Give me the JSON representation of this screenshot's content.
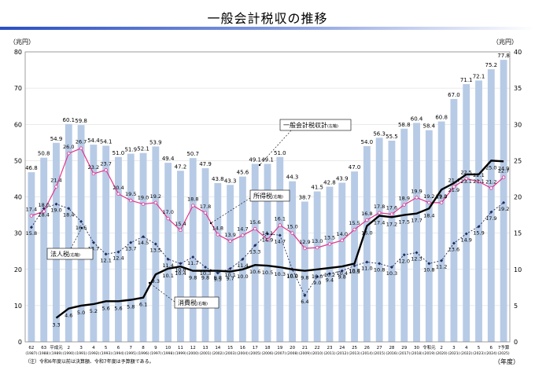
{
  "title": "一般会計税収の推移",
  "left_unit": "（兆円）",
  "right_unit": "（兆円）",
  "x_unit": "（年度）",
  "note": "（注）令和6年度以前は決算額、令和7年度は予算額である。",
  "colors": {
    "bar": "#b7cbe6",
    "total": "#000000",
    "income": "#e4348f",
    "corp": "#1f2a5a",
    "consumption": "#000000"
  },
  "chart_data": {
    "type": "bar",
    "years": [
      "62",
      "63",
      "平成元",
      "2",
      "3",
      "4",
      "5",
      "6",
      "7",
      "8",
      "9",
      "10",
      "11",
      "12",
      "13",
      "14",
      "15",
      "16",
      "17",
      "18",
      "19",
      "20",
      "21",
      "22",
      "23",
      "24",
      "25",
      "26",
      "27",
      "28",
      "29",
      "30",
      "令和元",
      "2",
      "3",
      "4",
      "5",
      "6",
      "7予算"
    ],
    "years_western": [
      "(1987)",
      "(1988)",
      "(1989)",
      "(1990)",
      "(1991)",
      "(1992)",
      "(1993)",
      "(1994)",
      "(1995)",
      "(1996)",
      "(1997)",
      "(1998)",
      "(1999)",
      "(2000)",
      "(2001)",
      "(2002)",
      "(2003)",
      "(2004)",
      "(2005)",
      "(2006)",
      "(2007)",
      "(2008)",
      "(2009)",
      "(2010)",
      "(2011)",
      "(2012)",
      "(2013)",
      "(2014)",
      "(2015)",
      "(2016)",
      "(2017)",
      "(2018)",
      "(2019)",
      "(2020)",
      "(2021)",
      "(2022)",
      "(2023)",
      "(2024)",
      "(2025)"
    ],
    "left_axis": {
      "ticks": [
        0,
        10,
        20,
        30,
        40,
        50,
        60,
        70,
        80
      ],
      "ylim": [
        0,
        80
      ]
    },
    "right_axis": {
      "ticks": [
        0,
        5,
        10,
        15,
        20,
        25,
        30,
        35,
        40
      ],
      "ylim": [
        0,
        40
      ]
    },
    "total": {
      "name": "一般会計税収計(左軸)",
      "label": "一般会計税収計",
      "axis_tag": "(左軸)",
      "axis": "left",
      "values": [
        46.8,
        50.8,
        54.9,
        60.1,
        59.8,
        54.4,
        54.1,
        51.0,
        51.9,
        52.1,
        53.9,
        49.4,
        47.2,
        50.7,
        47.9,
        43.8,
        43.3,
        45.6,
        49.1,
        49.1,
        51.0,
        44.3,
        38.7,
        41.5,
        42.8,
        43.9,
        47.0,
        54.0,
        56.3,
        55.5,
        58.8,
        60.4,
        58.4,
        60.8,
        67.0,
        71.1,
        72.1,
        75.2,
        77.8
      ]
    },
    "series": [
      {
        "name": "所得税(右軸)",
        "label": "所得税",
        "axis_tag": "(右軸)",
        "axis": "right",
        "values": [
          17.4,
          18.0,
          21.4,
          26.0,
          26.7,
          23.2,
          23.7,
          20.4,
          19.5,
          19.0,
          19.2,
          17.0,
          15.4,
          18.8,
          17.8,
          14.8,
          13.9,
          14.7,
          15.6,
          14.1,
          16.1,
          15.0,
          12.9,
          13.0,
          13.5,
          14.0,
          15.5,
          16.8,
          17.8,
          17.6,
          18.9,
          19.9,
          19.2,
          19.2,
          21.4,
          22.5,
          22.1,
          21.2,
          22.7
        ]
      },
      {
        "name": "法人税(右軸)",
        "label": "法人税",
        "axis_tag": "(右軸)",
        "axis": "right",
        "values": [
          15.8,
          18.4,
          19.0,
          18.4,
          16.6,
          13.7,
          12.1,
          12.4,
          13.7,
          14.5,
          13.5,
          11.4,
          10.8,
          11.7,
          10.3,
          9.5,
          10.1,
          11.4,
          13.3,
          14.9,
          14.7,
          10.0,
          6.4,
          9.0,
          9.4,
          9.8,
          10.5,
          11.0,
          10.8,
          10.3,
          12.0,
          12.3,
          10.8,
          11.2,
          13.6,
          14.9,
          15.9,
          17.9,
          19.2
        ]
      },
      {
        "name": "消費税(右軸)",
        "label": "消費税",
        "axis_tag": "(右軸)",
        "axis": "right",
        "values": [
          null,
          null,
          3.3,
          4.6,
          5.0,
          5.2,
          5.6,
          5.6,
          5.8,
          6.1,
          9.3,
          10.1,
          10.4,
          9.8,
          9.8,
          9.8,
          9.7,
          10.0,
          10.6,
          10.5,
          10.3,
          10.0,
          9.8,
          10.0,
          10.2,
          10.4,
          10.8,
          16.0,
          17.4,
          17.2,
          17.5,
          17.7,
          18.4,
          21.0,
          21.9,
          23.1,
          23.1,
          25.0,
          24.9
        ]
      }
    ]
  }
}
